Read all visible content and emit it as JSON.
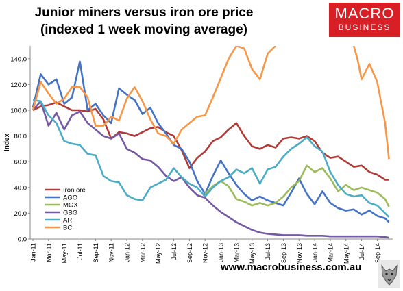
{
  "title_line1": "Junior miners versus iron ore price",
  "title_line2": "(indexed 1 week moving average)",
  "logo": {
    "line1": "MACRO",
    "line2": "BUSINESS",
    "bg": "#d81f26"
  },
  "footer": "www.macrobusiness.com.au",
  "chart_data": {
    "type": "line",
    "ylabel": "Index",
    "xlabel": "",
    "ylim": [
      0,
      150
    ],
    "y_ticks": [
      "0.0",
      "20.0",
      "40.0",
      "60.0",
      "80.0",
      "100.0",
      "120.0",
      "140.0"
    ],
    "y_tick_values": [
      0,
      20,
      40,
      60,
      80,
      100,
      120,
      140
    ],
    "x_ticks": [
      "Jan-11",
      "Mar-11",
      "May-11",
      "Jul-11",
      "Sep-11",
      "Nov-11",
      "Jan-12",
      "Mar-12",
      "May-12",
      "Jul-12",
      "Sep-12",
      "Nov-12",
      "Jan-13",
      "Mar-13",
      "May-13",
      "Jul-13",
      "Sep-13",
      "Nov-13",
      "Jan-14",
      "Mar-14",
      "May-14",
      "Jul-14",
      "Sep-14"
    ],
    "x_tick_months": [
      0,
      2,
      4,
      6,
      8,
      10,
      12,
      14,
      16,
      18,
      20,
      22,
      24,
      26,
      28,
      30,
      32,
      34,
      36,
      38,
      40,
      42,
      44
    ],
    "grid": false,
    "legend_position": "lower-left",
    "series": [
      {
        "name": "Iron ore",
        "color": "#b03a36",
        "points": [
          [
            0,
            100
          ],
          [
            1,
            103
          ],
          [
            2,
            104
          ],
          [
            3,
            106
          ],
          [
            4,
            103
          ],
          [
            5,
            100
          ],
          [
            6,
            100
          ],
          [
            7,
            99
          ],
          [
            8,
            101
          ],
          [
            9,
            93
          ],
          [
            10,
            78
          ],
          [
            11,
            83
          ],
          [
            12,
            82
          ],
          [
            13,
            80
          ],
          [
            14,
            83
          ],
          [
            15,
            86
          ],
          [
            16,
            87
          ],
          [
            17,
            83
          ],
          [
            18,
            80
          ],
          [
            19,
            69
          ],
          [
            20,
            55
          ],
          [
            21,
            63
          ],
          [
            22,
            68
          ],
          [
            23,
            76
          ],
          [
            24,
            79
          ],
          [
            25,
            85
          ],
          [
            26,
            90
          ],
          [
            27,
            80
          ],
          [
            28,
            72
          ],
          [
            29,
            70
          ],
          [
            30,
            73
          ],
          [
            31,
            71
          ],
          [
            32,
            78
          ],
          [
            33,
            79
          ],
          [
            34,
            78
          ],
          [
            35,
            80
          ],
          [
            36,
            76
          ],
          [
            37,
            67
          ],
          [
            38,
            63
          ],
          [
            39,
            64
          ],
          [
            40,
            60
          ],
          [
            41,
            56
          ],
          [
            42,
            57
          ],
          [
            43,
            52
          ],
          [
            44,
            50
          ],
          [
            45,
            46
          ],
          [
            45.5,
            46
          ]
        ]
      },
      {
        "name": "AGO",
        "color": "#4472c4",
        "points": [
          [
            0,
            102
          ],
          [
            1,
            128
          ],
          [
            2,
            120
          ],
          [
            3,
            124
          ],
          [
            4,
            105
          ],
          [
            5,
            110
          ],
          [
            6,
            138
          ],
          [
            7,
            100
          ],
          [
            8,
            105
          ],
          [
            9,
            96
          ],
          [
            10,
            90
          ],
          [
            11,
            117
          ],
          [
            12,
            112
          ],
          [
            13,
            108
          ],
          [
            14,
            97
          ],
          [
            15,
            102
          ],
          [
            16,
            90
          ],
          [
            17,
            82
          ],
          [
            18,
            73
          ],
          [
            19,
            70
          ],
          [
            20,
            60
          ],
          [
            21,
            45
          ],
          [
            22,
            35
          ],
          [
            23,
            49
          ],
          [
            24,
            61
          ],
          [
            25,
            51
          ],
          [
            26,
            42
          ],
          [
            27,
            35
          ],
          [
            28,
            30
          ],
          [
            29,
            33
          ],
          [
            30,
            30
          ],
          [
            31,
            28
          ],
          [
            32,
            26
          ],
          [
            33,
            36
          ],
          [
            34,
            47
          ],
          [
            35,
            35
          ],
          [
            36,
            27
          ],
          [
            37,
            37
          ],
          [
            38,
            28
          ],
          [
            39,
            24
          ],
          [
            40,
            22
          ],
          [
            41,
            23
          ],
          [
            42,
            19
          ],
          [
            43,
            22
          ],
          [
            44,
            18
          ],
          [
            45,
            16
          ],
          [
            45.5,
            13
          ]
        ]
      },
      {
        "name": "MGX",
        "color": "#9bbb59",
        "points": [
          [
            22,
            35
          ],
          [
            23,
            41
          ],
          [
            24,
            45
          ],
          [
            25,
            41
          ],
          [
            26,
            31
          ],
          [
            27,
            29
          ],
          [
            28,
            26
          ],
          [
            29,
            28
          ],
          [
            30,
            26
          ],
          [
            31,
            28
          ],
          [
            32,
            33
          ],
          [
            33,
            40
          ],
          [
            34,
            45
          ],
          [
            35,
            57
          ],
          [
            36,
            52
          ],
          [
            37,
            55
          ],
          [
            38,
            47
          ],
          [
            39,
            37
          ],
          [
            40,
            42
          ],
          [
            41,
            38
          ],
          [
            42,
            40
          ],
          [
            43,
            38
          ],
          [
            44,
            36
          ],
          [
            45,
            31
          ],
          [
            45.5,
            25
          ]
        ]
      },
      {
        "name": "GBG",
        "color": "#7559a2",
        "points": [
          [
            0,
            100
          ],
          [
            1,
            107
          ],
          [
            2,
            88
          ],
          [
            3,
            98
          ],
          [
            4,
            85
          ],
          [
            5,
            96
          ],
          [
            6,
            99
          ],
          [
            7,
            90
          ],
          [
            8,
            85
          ],
          [
            9,
            80
          ],
          [
            10,
            78
          ],
          [
            11,
            82
          ],
          [
            12,
            70
          ],
          [
            13,
            67
          ],
          [
            14,
            62
          ],
          [
            15,
            61
          ],
          [
            16,
            56
          ],
          [
            17,
            49
          ],
          [
            18,
            45
          ],
          [
            19,
            48
          ],
          [
            20,
            40
          ],
          [
            21,
            34
          ],
          [
            22,
            32
          ],
          [
            23,
            26
          ],
          [
            24,
            21
          ],
          [
            25,
            17
          ],
          [
            26,
            13
          ],
          [
            27,
            10
          ],
          [
            28,
            7
          ],
          [
            29,
            5
          ],
          [
            30,
            4
          ],
          [
            31,
            3.5
          ],
          [
            32,
            3
          ],
          [
            33,
            3
          ],
          [
            34,
            3
          ],
          [
            35,
            2.5
          ],
          [
            36,
            2.5
          ],
          [
            37,
            2.5
          ],
          [
            38,
            2
          ],
          [
            39,
            2
          ],
          [
            40,
            2
          ],
          [
            41,
            2
          ],
          [
            42,
            2
          ],
          [
            43,
            2
          ],
          [
            44,
            2
          ],
          [
            45,
            1.5
          ],
          [
            45.5,
            1
          ]
        ]
      },
      {
        "name": "ARI",
        "color": "#4bacc6",
        "points": [
          [
            0,
            108
          ],
          [
            1,
            107
          ],
          [
            2,
            96
          ],
          [
            3,
            90
          ],
          [
            4,
            76
          ],
          [
            5,
            74
          ],
          [
            6,
            73
          ],
          [
            7,
            66
          ],
          [
            8,
            65
          ],
          [
            9,
            49
          ],
          [
            10,
            45
          ],
          [
            11,
            44
          ],
          [
            12,
            34
          ],
          [
            13,
            31
          ],
          [
            14,
            30
          ],
          [
            15,
            40
          ],
          [
            16,
            43
          ],
          [
            17,
            46
          ],
          [
            18,
            55
          ],
          [
            19,
            48
          ],
          [
            20,
            43
          ],
          [
            21,
            40
          ],
          [
            22,
            33
          ],
          [
            23,
            40
          ],
          [
            24,
            45
          ],
          [
            25,
            48
          ],
          [
            26,
            54
          ],
          [
            27,
            51
          ],
          [
            28,
            55
          ],
          [
            29,
            43
          ],
          [
            30,
            54
          ],
          [
            31,
            56
          ],
          [
            32,
            64
          ],
          [
            33,
            70
          ],
          [
            34,
            74
          ],
          [
            35,
            79
          ],
          [
            36,
            72
          ],
          [
            37,
            68
          ],
          [
            38,
            52
          ],
          [
            39,
            42
          ],
          [
            40,
            35
          ],
          [
            41,
            33
          ],
          [
            42,
            34
          ],
          [
            43,
            28
          ],
          [
            44,
            26
          ],
          [
            45,
            20
          ],
          [
            45.5,
            17
          ]
        ]
      },
      {
        "name": "BCI",
        "color": "#f79646",
        "points": [
          [
            0,
            100
          ],
          [
            1,
            122
          ],
          [
            2,
            113
          ],
          [
            3,
            105
          ],
          [
            4,
            109
          ],
          [
            5,
            118
          ],
          [
            6,
            118
          ],
          [
            7,
            110
          ],
          [
            8,
            88
          ],
          [
            9,
            88
          ],
          [
            10,
            95
          ],
          [
            11,
            92
          ],
          [
            12,
            109
          ],
          [
            13,
            118
          ],
          [
            14,
            107
          ],
          [
            15,
            93
          ],
          [
            16,
            82
          ],
          [
            17,
            80
          ],
          [
            18,
            74
          ],
          [
            19,
            85
          ],
          [
            20,
            90
          ],
          [
            21,
            95
          ],
          [
            22,
            96
          ],
          [
            23,
            110
          ],
          [
            24,
            125
          ],
          [
            25,
            140
          ],
          [
            26,
            150
          ],
          [
            27,
            148
          ],
          [
            28,
            132
          ],
          [
            29,
            124
          ],
          [
            30,
            144
          ],
          [
            31,
            150
          ]
        ],
        "points_2": [
          [
            41,
            150
          ],
          [
            41.5,
            139
          ],
          [
            42,
            124
          ],
          [
            43,
            136
          ],
          [
            44,
            122
          ],
          [
            45,
            90
          ],
          [
            45.5,
            62
          ]
        ]
      }
    ]
  }
}
